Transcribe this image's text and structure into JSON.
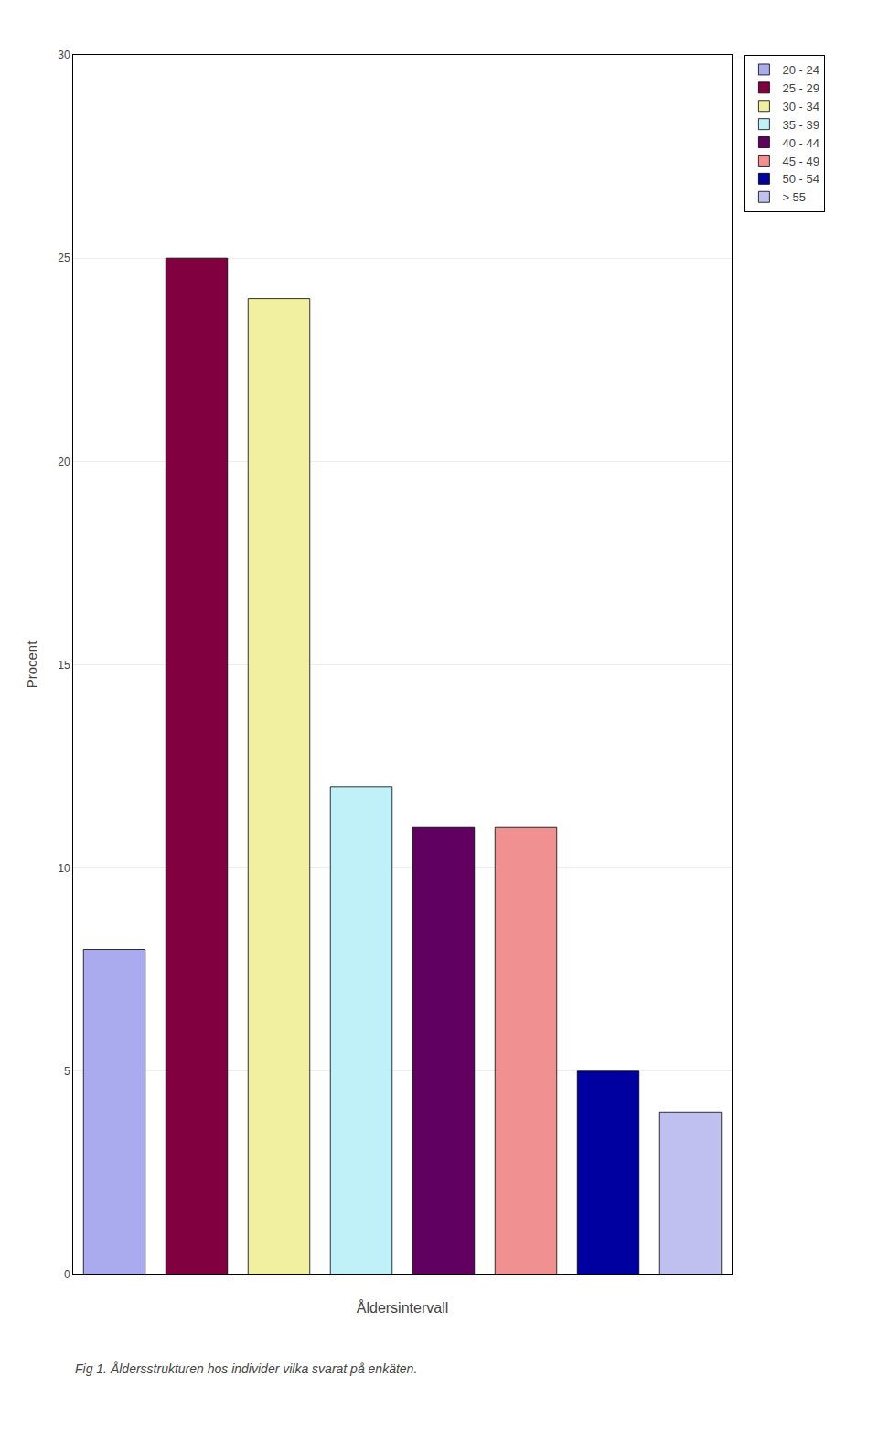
{
  "chart_data": {
    "type": "bar",
    "xlabel": "Åldersintervall",
    "ylabel": "Procent",
    "annotations": [
      {
        "text": "Fig 1. Åldersstrukturen hos individer vilka svarat på enkäten."
      }
    ],
    "categories": [
      "20 - 24",
      "25 - 29",
      "30 - 34",
      "35 - 39",
      "40 - 44",
      "45 - 49",
      "50 - 54",
      "> 55"
    ],
    "values": [
      8,
      25,
      24,
      12,
      11,
      11,
      5,
      4
    ],
    "colors": [
      "#aaaaee",
      "#800040",
      "#f0f0a0",
      "#c0f0f8",
      "#600060",
      "#f09090",
      "#0000a0",
      "#c0c0f0"
    ],
    "ylim": [
      0,
      30
    ],
    "yticks": [
      0,
      5,
      10,
      15,
      20,
      25,
      30
    ],
    "grid": true,
    "legend": "right",
    "tick_labels": "y"
  }
}
